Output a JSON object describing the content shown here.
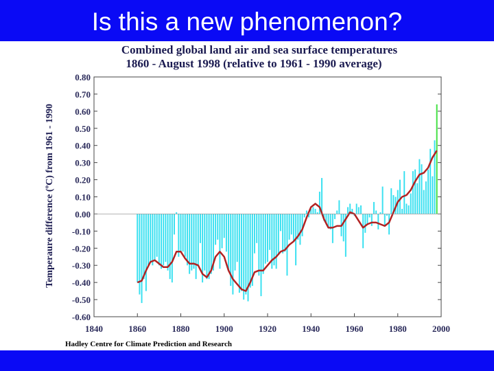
{
  "slide_title": "Is this a new phenomenon?",
  "chart_data": {
    "type": "bar",
    "title": "Combined global land air and sea surface temperatures",
    "subtitle": "1860 - August 1998 (relative to 1961 - 1990 average)",
    "y_label": "Temperaure difference (ºC) from 1961 - 1990",
    "source": "Hadley Centre for Climate Prediction and Research",
    "xlim": [
      1840,
      2000
    ],
    "xticks": [
      1840,
      1860,
      1880,
      1900,
      1920,
      1940,
      1960,
      1980,
      2000
    ],
    "ylim": [
      -0.6,
      0.8
    ],
    "yticks": [
      {
        "value": 0.8,
        "label": "0.80"
      },
      {
        "value": 0.7,
        "label": "0.70"
      },
      {
        "value": 0.6,
        "label": "0.60"
      },
      {
        "value": 0.5,
        "label": "0.50"
      },
      {
        "value": 0.4,
        "label": "0.40"
      },
      {
        "value": 0.3,
        "label": "0.30"
      },
      {
        "value": 0.2,
        "label": "0.20"
      },
      {
        "value": 0.1,
        "label": "0.10"
      },
      {
        "value": 0,
        "label": "0.00"
      },
      {
        "value": -0.1,
        "label": "-0.10"
      },
      {
        "value": -0.2,
        "label": "-0.20"
      },
      {
        "value": -0.3,
        "label": "-0.30"
      },
      {
        "value": -0.4,
        "label": "-0.40"
      },
      {
        "value": -0.5,
        "label": "-0.50"
      },
      {
        "value": -0.6,
        "label": "-0.60"
      }
    ],
    "series": [
      {
        "type": "bar",
        "color": "#38e0f0",
        "x": [
          1860,
          1861,
          1862,
          1863,
          1864,
          1865,
          1866,
          1867,
          1868,
          1869,
          1870,
          1871,
          1872,
          1873,
          1874,
          1875,
          1876,
          1877,
          1878,
          1879,
          1880,
          1881,
          1882,
          1883,
          1884,
          1885,
          1886,
          1887,
          1888,
          1889,
          1890,
          1891,
          1892,
          1893,
          1894,
          1895,
          1896,
          1897,
          1898,
          1899,
          1900,
          1901,
          1902,
          1903,
          1904,
          1905,
          1906,
          1907,
          1908,
          1909,
          1910,
          1911,
          1912,
          1913,
          1914,
          1915,
          1916,
          1917,
          1918,
          1919,
          1920,
          1921,
          1922,
          1923,
          1924,
          1925,
          1926,
          1927,
          1928,
          1929,
          1930,
          1931,
          1932,
          1933,
          1934,
          1935,
          1936,
          1937,
          1938,
          1939,
          1940,
          1941,
          1942,
          1943,
          1944,
          1945,
          1946,
          1947,
          1948,
          1949,
          1950,
          1951,
          1952,
          1953,
          1954,
          1955,
          1956,
          1957,
          1958,
          1959,
          1960,
          1961,
          1962,
          1963,
          1964,
          1965,
          1966,
          1967,
          1968,
          1969,
          1970,
          1971,
          1972,
          1973,
          1974,
          1975,
          1976,
          1977,
          1978,
          1979,
          1980,
          1981,
          1982,
          1983,
          1984,
          1985,
          1986,
          1987,
          1988,
          1989,
          1990,
          1991,
          1992,
          1993,
          1994,
          1995,
          1996,
          1997
        ],
        "values": [
          -0.4,
          -0.47,
          -0.52,
          -0.38,
          -0.45,
          -0.3,
          -0.28,
          -0.3,
          -0.27,
          -0.25,
          -0.3,
          -0.32,
          -0.3,
          -0.28,
          -0.33,
          -0.38,
          -0.4,
          -0.12,
          0.01,
          -0.25,
          -0.22,
          -0.22,
          -0.25,
          -0.3,
          -0.35,
          -0.33,
          -0.32,
          -0.38,
          -0.3,
          -0.17,
          -0.4,
          -0.33,
          -0.38,
          -0.38,
          -0.35,
          -0.33,
          -0.18,
          -0.15,
          -0.32,
          -0.2,
          -0.14,
          -0.22,
          -0.33,
          -0.42,
          -0.47,
          -0.33,
          -0.28,
          -0.46,
          -0.45,
          -0.5,
          -0.47,
          -0.51,
          -0.43,
          -0.42,
          -0.23,
          -0.17,
          -0.36,
          -0.48,
          -0.35,
          -0.29,
          -0.28,
          -0.21,
          -0.32,
          -0.3,
          -0.32,
          -0.24,
          -0.1,
          -0.23,
          -0.22,
          -0.36,
          -0.15,
          -0.12,
          -0.16,
          -0.3,
          -0.15,
          -0.18,
          -0.13,
          -0.02,
          0.02,
          -0.02,
          0.03,
          0.04,
          0.03,
          0.01,
          0.13,
          0.21,
          -0.04,
          -0.06,
          -0.08,
          -0.09,
          -0.17,
          -0.03,
          0.02,
          0.08,
          -0.13,
          -0.16,
          -0.25,
          0.04,
          0.06,
          0.03,
          -0.01,
          0.06,
          0.04,
          0.05,
          -0.2,
          -0.11,
          -0.06,
          -0.02,
          -0.07,
          0.07,
          0.02,
          -0.09,
          0.01,
          0.16,
          -0.07,
          -0.01,
          -0.12,
          0.15,
          0.11,
          0.1,
          0.14,
          0.2,
          0.03,
          0.25,
          0.06,
          0.05,
          0.12,
          0.25,
          0.26,
          0.18,
          0.32,
          0.29,
          0.14,
          0.19,
          0.26,
          0.38,
          0.22,
          0.43
        ]
      },
      {
        "type": "bar",
        "color": "#40e040",
        "x": [
          1998
        ],
        "values": [
          0.64
        ]
      },
      {
        "type": "line",
        "color": "#b22222",
        "x": [
          1860,
          1862,
          1864,
          1866,
          1868,
          1870,
          1872,
          1874,
          1876,
          1878,
          1880,
          1882,
          1884,
          1886,
          1888,
          1890,
          1892,
          1894,
          1896,
          1898,
          1900,
          1902,
          1904,
          1906,
          1908,
          1910,
          1912,
          1914,
          1916,
          1918,
          1920,
          1922,
          1924,
          1926,
          1928,
          1930,
          1932,
          1934,
          1936,
          1938,
          1940,
          1942,
          1944,
          1946,
          1948,
          1950,
          1952,
          1954,
          1956,
          1958,
          1960,
          1962,
          1964,
          1966,
          1968,
          1970,
          1972,
          1974,
          1976,
          1978,
          1980,
          1982,
          1984,
          1986,
          1988,
          1990,
          1992,
          1994,
          1996,
          1998
        ],
        "values": [
          -0.4,
          -0.39,
          -0.33,
          -0.28,
          -0.27,
          -0.29,
          -0.31,
          -0.31,
          -0.28,
          -0.22,
          -0.22,
          -0.26,
          -0.29,
          -0.29,
          -0.3,
          -0.35,
          -0.37,
          -0.33,
          -0.25,
          -0.22,
          -0.25,
          -0.33,
          -0.38,
          -0.41,
          -0.44,
          -0.45,
          -0.4,
          -0.34,
          -0.33,
          -0.33,
          -0.3,
          -0.27,
          -0.25,
          -0.22,
          -0.21,
          -0.18,
          -0.16,
          -0.13,
          -0.09,
          -0.02,
          0.04,
          0.06,
          0.04,
          -0.03,
          -0.08,
          -0.08,
          -0.07,
          -0.07,
          -0.03,
          0.01,
          0.0,
          -0.04,
          -0.08,
          -0.06,
          -0.05,
          -0.05,
          -0.06,
          -0.07,
          -0.05,
          0.01,
          0.07,
          0.1,
          0.11,
          0.14,
          0.19,
          0.23,
          0.24,
          0.27,
          0.33,
          0.37
        ]
      }
    ]
  }
}
